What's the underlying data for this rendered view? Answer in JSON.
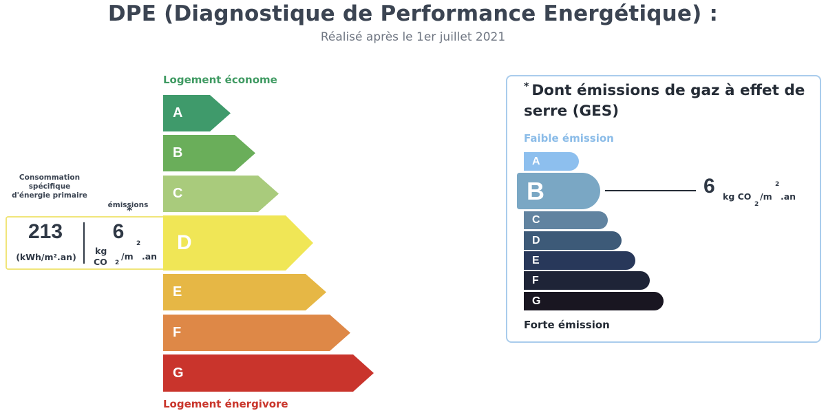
{
  "header": {
    "title": "DPE (Diagnostique de Performance Energétique) :",
    "subtitle": "Réalisé après le 1er juillet 2021"
  },
  "dpe": {
    "top_label": "Logement économe",
    "bottom_label": "Logement énergivore",
    "classes": [
      {
        "letter": "A",
        "color": "#3f9a6b"
      },
      {
        "letter": "B",
        "color": "#6aae5a"
      },
      {
        "letter": "C",
        "color": "#a9cb7c"
      },
      {
        "letter": "D",
        "color": "#f0e656"
      },
      {
        "letter": "E",
        "color": "#e6b745"
      },
      {
        "letter": "F",
        "color": "#de8847"
      },
      {
        "letter": "G",
        "color": "#c9342c"
      }
    ],
    "active_class": "D",
    "consumption_caption": "Consommation spécifique d'énergie primaire",
    "consumption_value": "213",
    "consumption_unit": "(kWh/m².an)",
    "emissions_caption": "émissions",
    "emissions_star": "*",
    "emissions_value": "6",
    "emissions_unit": {
      "kg": "kg",
      "co": "CO",
      "sub2": "2",
      "per_m": "/m",
      "sup2": "2",
      "an": ".an"
    },
    "box_border_color": "#f0e57a"
  },
  "ges": {
    "title_star": "*",
    "title": "Dont émissions de gaz à effet de serre (GES)",
    "top_label": "Faible émission",
    "bottom_label": "Forte émission",
    "classes": [
      {
        "letter": "A",
        "color": "#8dbfee"
      },
      {
        "letter": "B",
        "color": "#7aa7c4"
      },
      {
        "letter": "C",
        "color": "#6183a0"
      },
      {
        "letter": "D",
        "color": "#3d5a78"
      },
      {
        "letter": "E",
        "color": "#28385a"
      },
      {
        "letter": "F",
        "color": "#1e2437"
      },
      {
        "letter": "G",
        "color": "#191621"
      }
    ],
    "active_class": "B",
    "value": "6",
    "unit": {
      "kg": "kg CO",
      "sub2": "2",
      "per_m": "/m",
      "sup2": "2",
      "an": ".an"
    },
    "border_color": "#a9ccec"
  }
}
